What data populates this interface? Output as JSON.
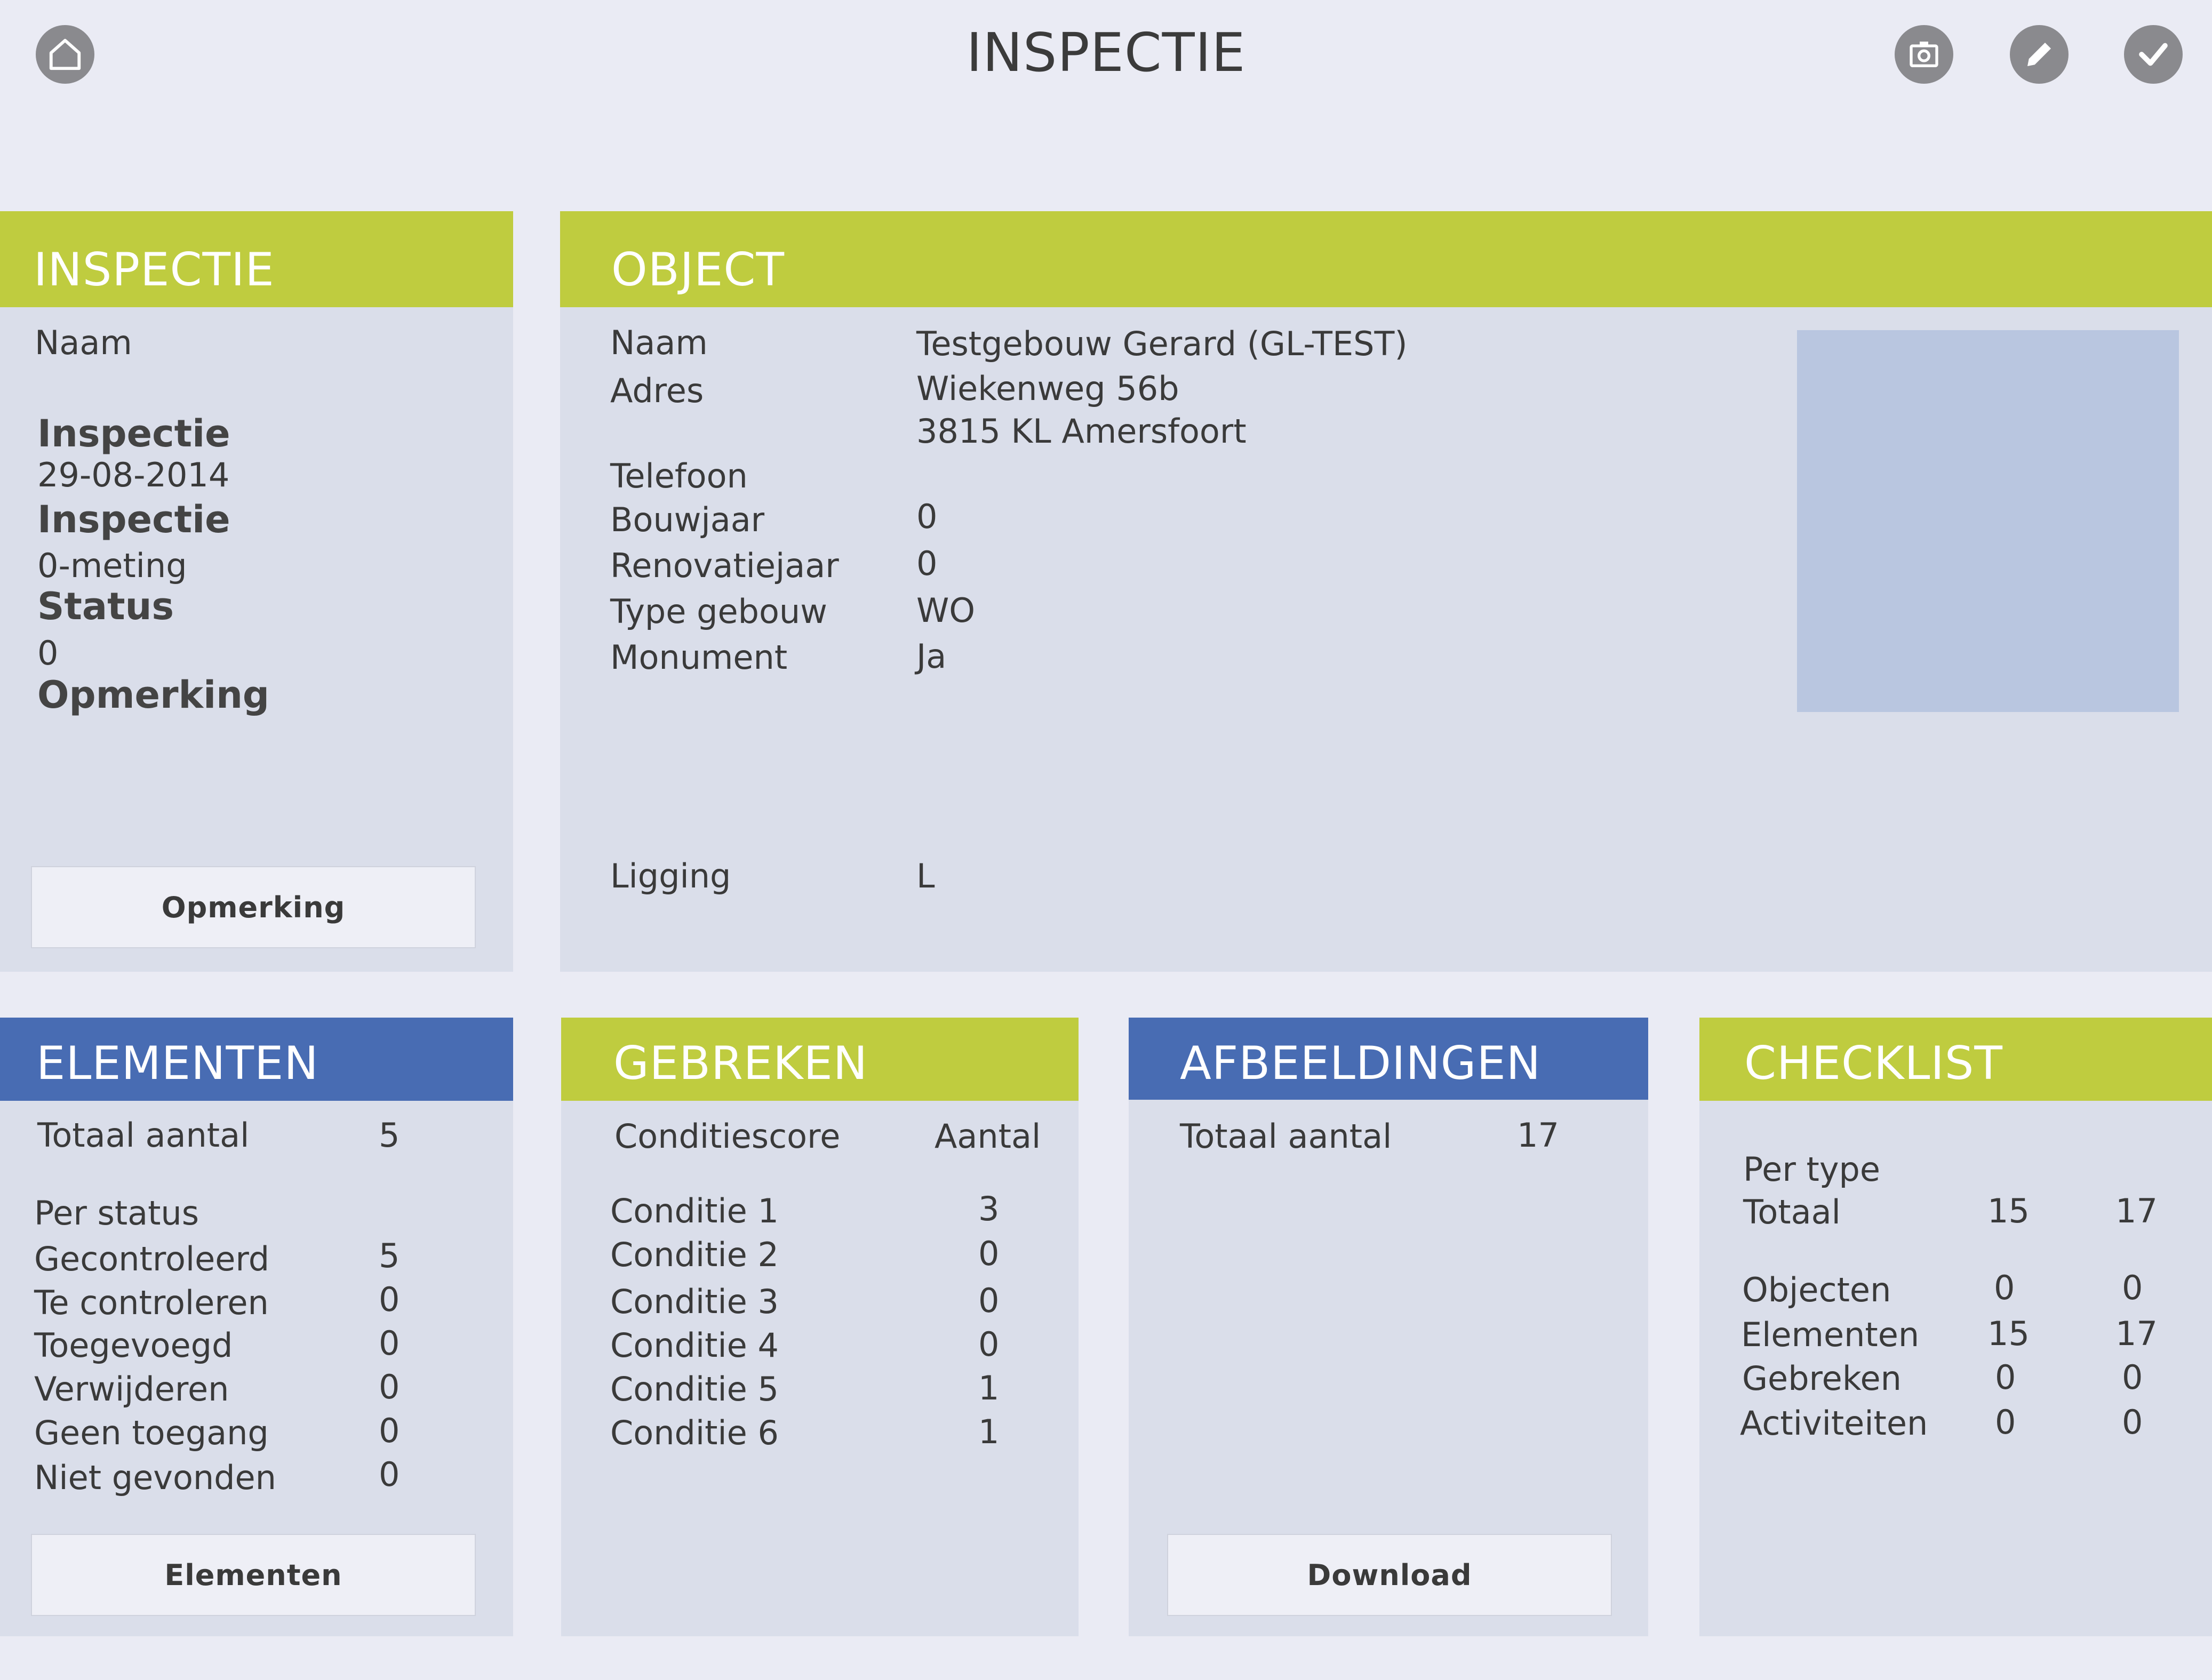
{
  "header": {
    "title": "INSPECTIE"
  },
  "inspectie": {
    "heading": "INSPECTIE",
    "naam_label": "Naam",
    "inspectie_label_1": "Inspectie",
    "inspectie_date": "29-08-2014",
    "inspectie_label_2": "Inspectie",
    "inspectie_type": "0-meting",
    "status_label": "Status",
    "status_value": "0",
    "opmerking_label": "Opmerking",
    "button_label": "Opmerking"
  },
  "object": {
    "heading": "OBJECT",
    "naam_label": "Naam",
    "naam_value": "Testgebouw Gerard (GL-TEST)",
    "adres_label": "Adres",
    "adres_line1": "Wiekenweg 56b",
    "adres_line2": "3815 KL Amersfoort",
    "telefoon_label": "Telefoon",
    "bouwjaar_label": "Bouwjaar",
    "bouwjaar_value": "0",
    "renovatiejaar_label": "Renovatiejaar",
    "renovatiejaar_value": "0",
    "type_label": "Type gebouw",
    "type_value": "WO",
    "monument_label": "Monument",
    "monument_value": "Ja",
    "ligging_label": "Ligging",
    "ligging_value": "L"
  },
  "elementen": {
    "heading": "ELEMENTEN",
    "totaal_label": "Totaal aantal",
    "totaal_value": "5",
    "per_status_label": "Per status",
    "rows": [
      {
        "label": "Gecontroleerd",
        "value": "5"
      },
      {
        "label": "Te controleren",
        "value": "0"
      },
      {
        "label": "Toegevoegd",
        "value": "0"
      },
      {
        "label": "Verwijderen",
        "value": "0"
      },
      {
        "label": "Geen toegang",
        "value": "0"
      },
      {
        "label": "Niet gevonden",
        "value": "0"
      }
    ],
    "button_label": "Elementen"
  },
  "gebreken": {
    "heading": "GEBREKEN",
    "col1_label": "Conditiescore",
    "col2_label": "Aantal",
    "rows": [
      {
        "label": "Conditie 1",
        "value": "3"
      },
      {
        "label": "Conditie 2",
        "value": "0"
      },
      {
        "label": "Conditie 3",
        "value": "0"
      },
      {
        "label": "Conditie 4",
        "value": "0"
      },
      {
        "label": "Conditie 5",
        "value": "1"
      },
      {
        "label": "Conditie 6",
        "value": "1"
      }
    ]
  },
  "afbeeldingen": {
    "heading": "AFBEELDINGEN",
    "totaal_label": "Totaal aantal",
    "totaal_value": "17",
    "button_label": "Download"
  },
  "checklist": {
    "heading": "CHECKLIST",
    "per_type_label": "Per type",
    "totaal_label": "Totaal",
    "totaal_a": "15",
    "totaal_b": "17",
    "rows": [
      {
        "label": "Objecten",
        "a": "0",
        "b": "0"
      },
      {
        "label": "Elementen",
        "a": "15",
        "b": "17"
      },
      {
        "label": "Gebreken",
        "a": "0",
        "b": "0"
      },
      {
        "label": "Activiteiten",
        "a": "0",
        "b": "0"
      }
    ]
  },
  "colors": {
    "green": "#bfcc3f",
    "blue": "#486cb3",
    "panel": "#dadeea",
    "background": "#eaebf4"
  }
}
